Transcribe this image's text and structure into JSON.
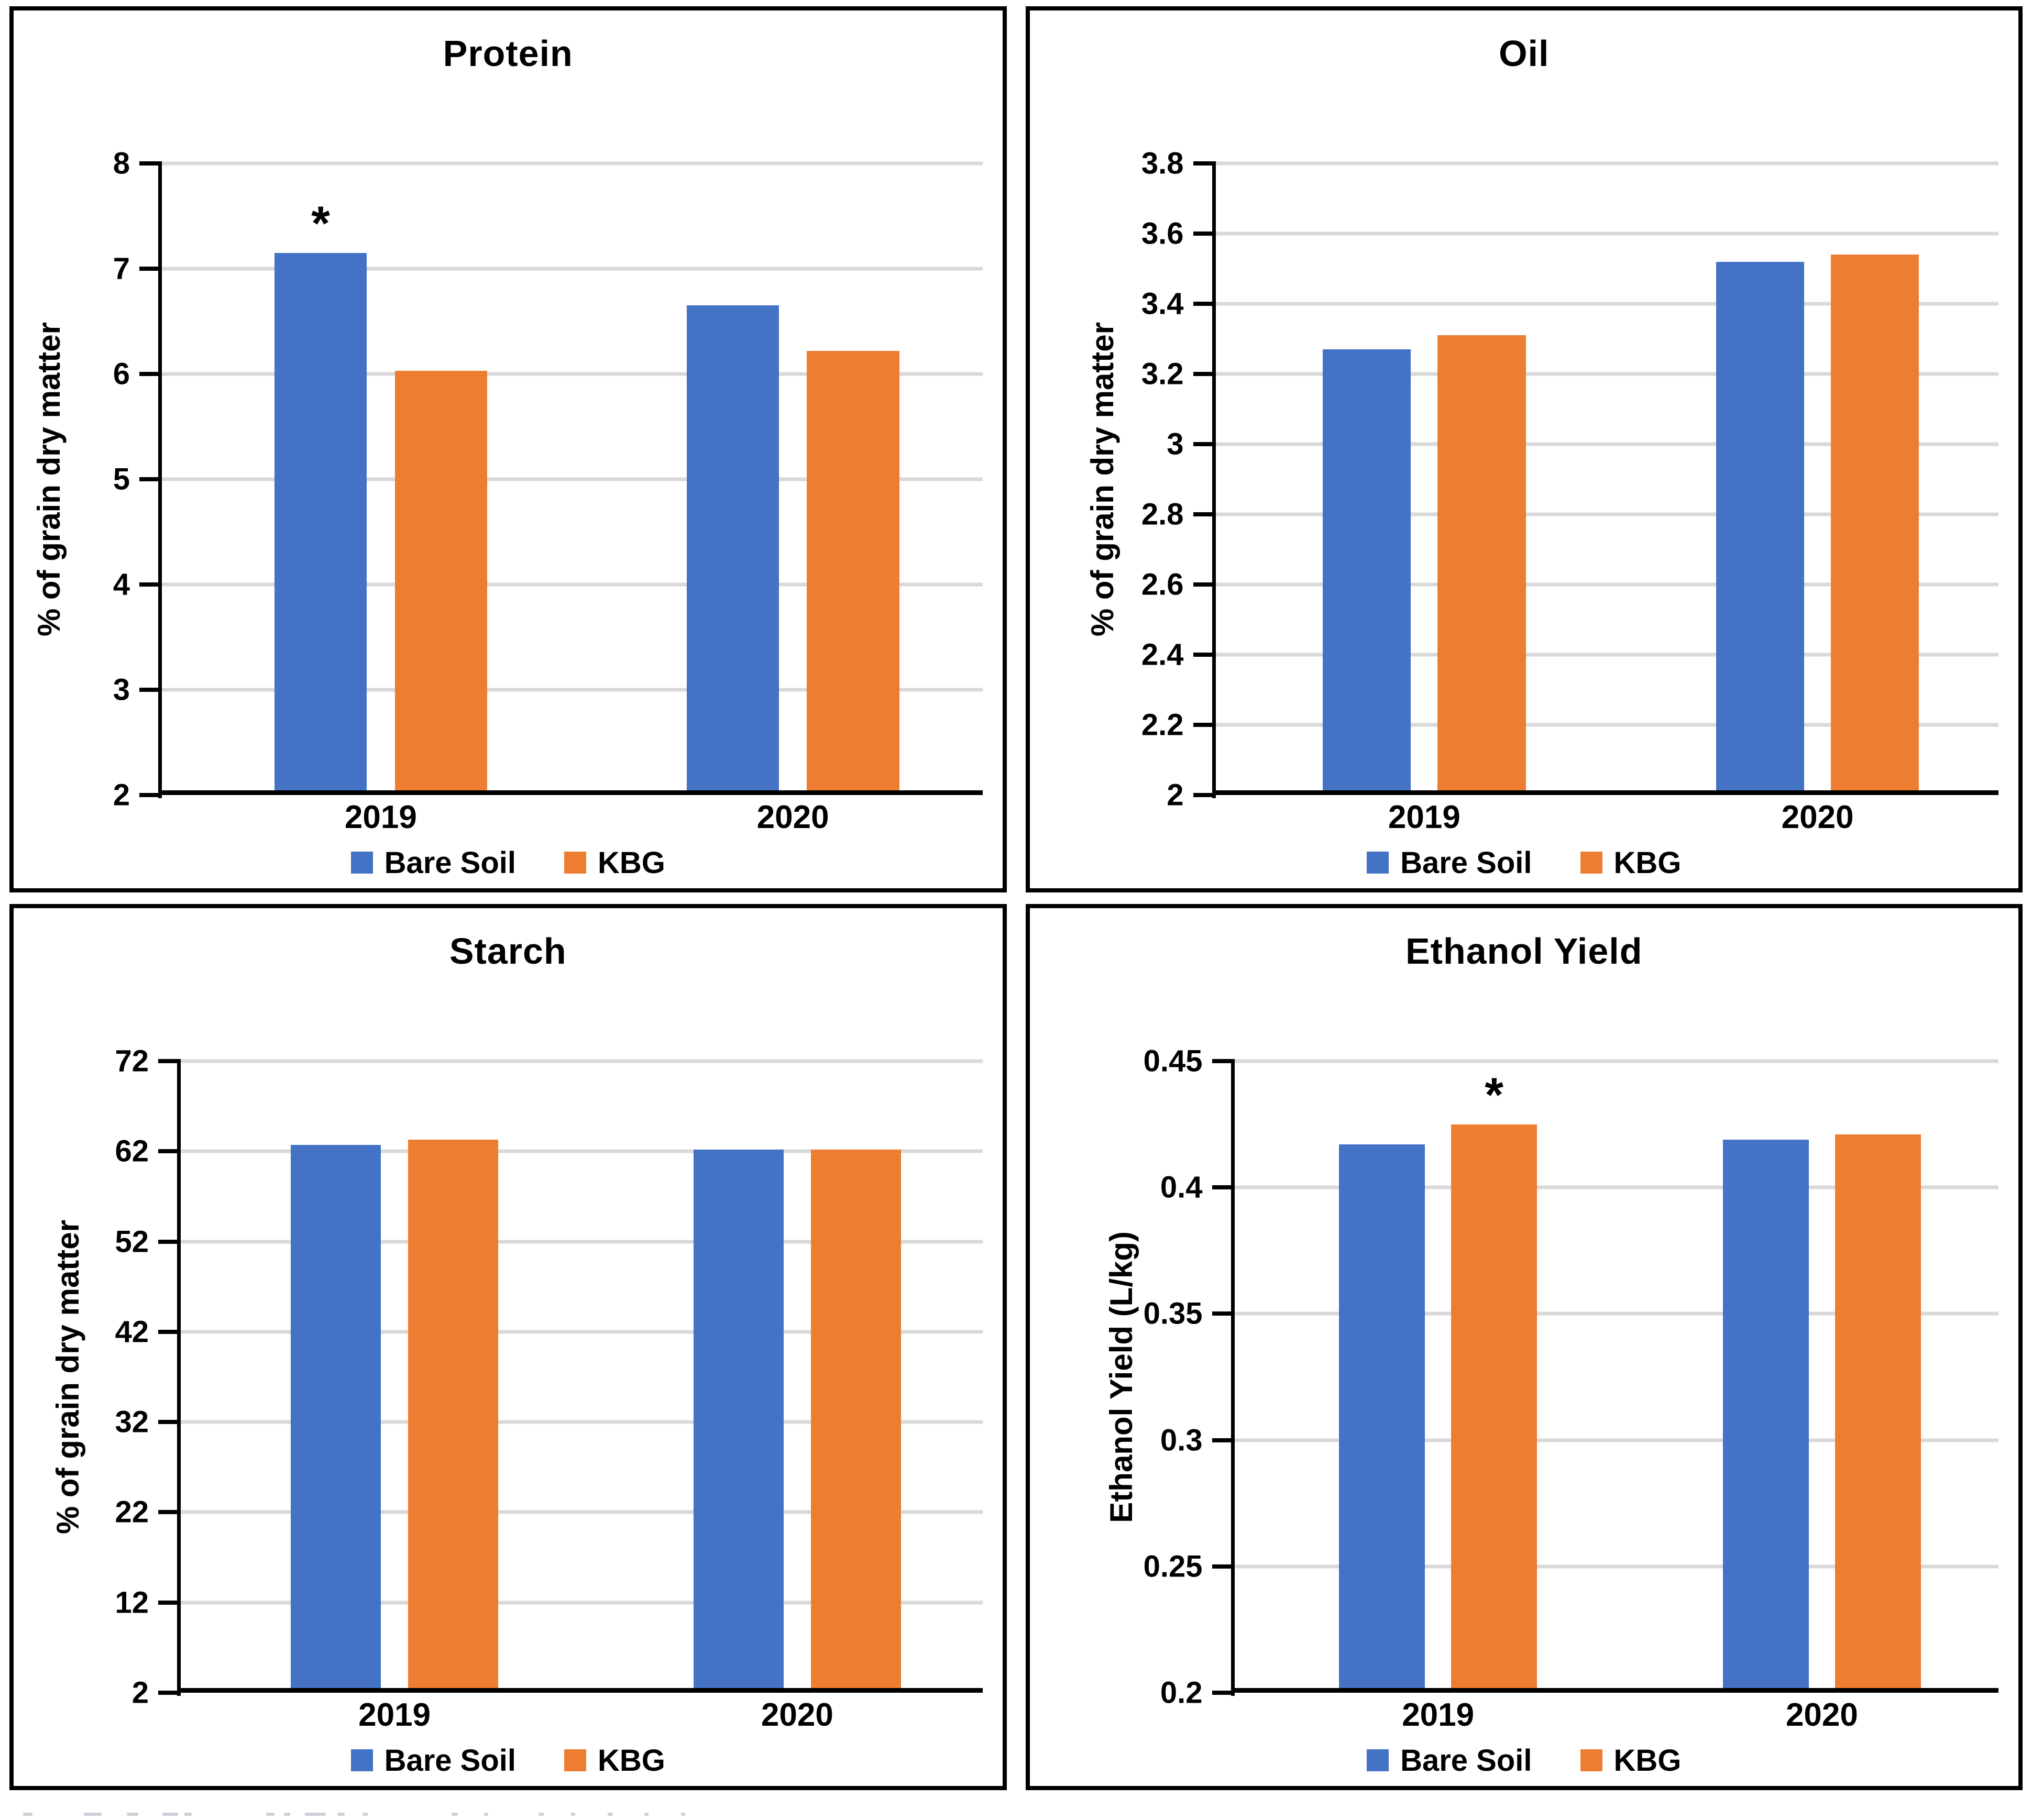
{
  "figure": {
    "background": "#ffffff",
    "panel_border_color": "#000000",
    "gridline_color": "#D9D9D9",
    "axis_color": "#000000",
    "text_color": "#000000",
    "series_colors": {
      "bare_soil": "#4472C4",
      "kbg": "#ED7D31"
    }
  },
  "chart_data": [
    {
      "type": "bar",
      "title": "Protein",
      "xlabel": "",
      "ylabel": "% of grain dry matter",
      "categories": [
        "2019",
        "2020"
      ],
      "series": [
        {
          "name": "Bare Soil",
          "color": "#4472C4",
          "values": [
            7.15,
            6.65
          ]
        },
        {
          "name": "KBG",
          "color": "#ED7D31",
          "values": [
            6.03,
            6.22
          ]
        }
      ],
      "ylim": [
        2,
        8
      ],
      "yticks": [
        "2",
        "3",
        "4",
        "5",
        "6",
        "7",
        "8"
      ],
      "grid": true,
      "legend_position": "bottom",
      "annotations": [
        {
          "category": "2019",
          "series": "Bare Soil",
          "symbol": "*"
        }
      ]
    },
    {
      "type": "bar",
      "title": "Oil",
      "xlabel": "",
      "ylabel": "% of grain dry matter",
      "categories": [
        "2019",
        "2020"
      ],
      "series": [
        {
          "name": "Bare Soil",
          "color": "#4472C4",
          "values": [
            3.27,
            3.52
          ]
        },
        {
          "name": "KBG",
          "color": "#ED7D31",
          "values": [
            3.31,
            3.54
          ]
        }
      ],
      "ylim": [
        2,
        3.8
      ],
      "yticks": [
        "2",
        "2.2",
        "2.4",
        "2.6",
        "2.8",
        "3",
        "3.2",
        "3.4",
        "3.6",
        "3.8"
      ],
      "grid": true,
      "legend_position": "bottom",
      "annotations": []
    },
    {
      "type": "bar",
      "title": "Starch",
      "xlabel": "",
      "ylabel": "% of grain dry matter",
      "categories": [
        "2019",
        "2020"
      ],
      "series": [
        {
          "name": "Bare Soil",
          "color": "#4472C4",
          "values": [
            62.7,
            62.2
          ]
        },
        {
          "name": "KBG",
          "color": "#ED7D31",
          "values": [
            63.3,
            62.2
          ]
        }
      ],
      "ylim": [
        2,
        72
      ],
      "yticks": [
        "2",
        "12",
        "22",
        "32",
        "42",
        "52",
        "62",
        "72"
      ],
      "grid": true,
      "legend_position": "bottom",
      "annotations": []
    },
    {
      "type": "bar",
      "title": "Ethanol Yield",
      "xlabel": "",
      "ylabel": "Ethanol Yield (L/kg)",
      "categories": [
        "2019",
        "2020"
      ],
      "series": [
        {
          "name": "Bare Soil",
          "color": "#4472C4",
          "values": [
            0.417,
            0.419
          ]
        },
        {
          "name": "KBG",
          "color": "#ED7D31",
          "values": [
            0.425,
            0.421
          ]
        }
      ],
      "ylim": [
        0.2,
        0.45
      ],
      "yticks": [
        "0.2",
        "0.25",
        "0.3",
        "0.35",
        "0.4",
        "0.45"
      ],
      "grid": true,
      "legend_position": "bottom",
      "annotations": [
        {
          "category": "2019",
          "series": "KBG",
          "symbol": "*"
        }
      ]
    }
  ]
}
